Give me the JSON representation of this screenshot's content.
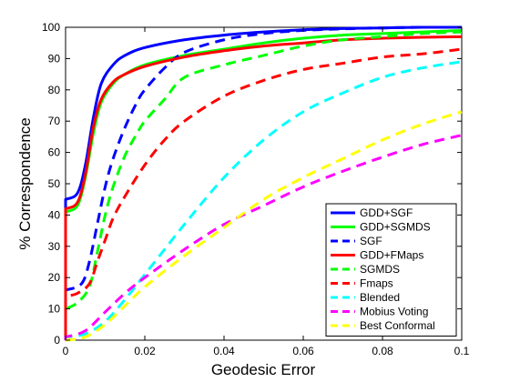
{
  "chart_data": {
    "type": "line",
    "title": "",
    "xlabel": "Geodesic Error",
    "ylabel": "% Correspondence",
    "xlim": [
      0,
      0.1
    ],
    "ylim": [
      0,
      100
    ],
    "xticks": [
      "0",
      "0.02",
      "0.04",
      "0.06",
      "0.08",
      "0.1"
    ],
    "yticks": [
      "0",
      "10",
      "20",
      "30",
      "40",
      "50",
      "60",
      "70",
      "80",
      "90",
      "100"
    ],
    "grid": false,
    "legend_position": "bottom-right",
    "series": [
      {
        "name": "GDD+SGF",
        "color": "#0000ff",
        "dash": "solid",
        "x": [
          0,
          0.003,
          0.005,
          0.007,
          0.009,
          0.012,
          0.015,
          0.02,
          0.03,
          0.04,
          0.05,
          0.06,
          0.07,
          0.08,
          0.09,
          0.1
        ],
        "y": [
          45,
          47,
          56,
          71,
          82,
          88,
          91,
          93.5,
          96,
          97.5,
          98.5,
          99.2,
          99.6,
          99.8,
          100,
          100
        ]
      },
      {
        "name": "GDD+SGMDS",
        "color": "#00ff00",
        "dash": "solid",
        "x": [
          0,
          0.003,
          0.005,
          0.007,
          0.009,
          0.012,
          0.015,
          0.02,
          0.03,
          0.04,
          0.05,
          0.06,
          0.07,
          0.08,
          0.09,
          0.1
        ],
        "y": [
          41,
          43,
          52,
          66,
          76,
          82,
          85,
          88,
          91,
          93,
          95,
          96.5,
          97.5,
          98,
          98.5,
          99
        ]
      },
      {
        "name": "SGF",
        "color": "#0000ff",
        "dash": "dashed",
        "x": [
          0,
          0.004,
          0.006,
          0.008,
          0.01,
          0.012,
          0.015,
          0.018,
          0.02,
          0.025,
          0.03,
          0.04,
          0.05,
          0.06,
          0.07,
          0.08,
          0.09,
          0.1
        ],
        "y": [
          16,
          18,
          25,
          37,
          49,
          58,
          68,
          76,
          80,
          87,
          92,
          96,
          98,
          99,
          99.5,
          99.8,
          100,
          100
        ]
      },
      {
        "name": "GDD+FMaps",
        "color": "#ff0000",
        "dash": "solid",
        "x": [
          0,
          0.003,
          0.005,
          0.007,
          0.009,
          0.012,
          0.015,
          0.02,
          0.03,
          0.04,
          0.05,
          0.06,
          0.07,
          0.08,
          0.09,
          0.1
        ],
        "y": [
          42,
          44,
          53,
          68,
          77,
          82.5,
          85,
          87.5,
          90.5,
          92.5,
          94,
          95,
          96,
          96.5,
          96.8,
          97
        ]
      },
      {
        "name": "SGMDS",
        "color": "#00ff00",
        "dash": "dashed",
        "x": [
          0,
          0.003,
          0.006,
          0.008,
          0.01,
          0.012,
          0.015,
          0.018,
          0.02,
          0.025,
          0.03,
          0.04,
          0.05,
          0.06,
          0.07,
          0.08,
          0.09,
          0.1
        ],
        "y": [
          10,
          12,
          17,
          28,
          40,
          49,
          59,
          66,
          70,
          77,
          84,
          88,
          91,
          94,
          96,
          97,
          98,
          98.5
        ]
      },
      {
        "name": "Fmaps",
        "color": "#ff0000",
        "dash": "dashed",
        "x": [
          0,
          0.003,
          0.006,
          0.008,
          0.01,
          0.012,
          0.015,
          0.02,
          0.025,
          0.03,
          0.04,
          0.05,
          0.06,
          0.07,
          0.08,
          0.09,
          0.1
        ],
        "y": [
          14,
          15,
          18,
          25,
          32,
          39,
          46,
          56,
          64,
          70,
          78,
          83,
          86.5,
          88.5,
          90.5,
          91.5,
          93
        ]
      },
      {
        "name": "Blended",
        "color": "#00ffff",
        "dash": "dashed",
        "x": [
          0,
          0.005,
          0.01,
          0.015,
          0.02,
          0.025,
          0.03,
          0.04,
          0.05,
          0.06,
          0.07,
          0.08,
          0.09,
          0.1
        ],
        "y": [
          1,
          2,
          6,
          13,
          21,
          29,
          37,
          52,
          64,
          73,
          79,
          84,
          87,
          89
        ]
      },
      {
        "name": "Mobius Voting",
        "color": "#ff00ff",
        "dash": "dashed",
        "x": [
          0,
          0.005,
          0.01,
          0.015,
          0.02,
          0.03,
          0.04,
          0.05,
          0.06,
          0.07,
          0.08,
          0.09,
          0.1
        ],
        "y": [
          1,
          3,
          9,
          15,
          20,
          29,
          37,
          43,
          49,
          54,
          58.5,
          62.5,
          65.5
        ]
      },
      {
        "name": "Best Conformal",
        "color": "#ffff00",
        "dash": "dashed",
        "x": [
          0,
          0.005,
          0.01,
          0.015,
          0.02,
          0.03,
          0.04,
          0.05,
          0.06,
          0.07,
          0.08,
          0.09,
          0.1
        ],
        "y": [
          0,
          1,
          5,
          11,
          17,
          27,
          36,
          45,
          52,
          58,
          64,
          69,
          73
        ]
      }
    ]
  }
}
